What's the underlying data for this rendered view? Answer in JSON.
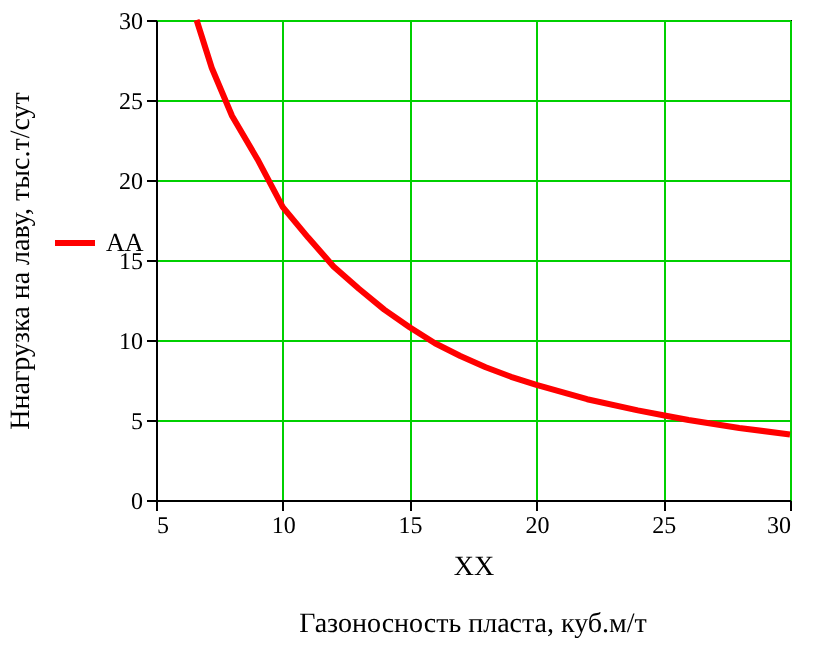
{
  "chart_data": {
    "type": "line",
    "xlabel": "XX",
    "ylabel": "Ннагрузка на лаву, тыс.т/сут",
    "annotations": [
      "Газоносность пласта, куб.м/т"
    ],
    "x": [
      6.6,
      7.2,
      8,
      9,
      10,
      11,
      12,
      13,
      14,
      15,
      16,
      17,
      18,
      19,
      20,
      22,
      24,
      25,
      26,
      28,
      30
    ],
    "series": [
      {
        "name": "AA",
        "color": "#ff0000",
        "values": [
          30,
          27,
          24,
          21.3,
          18.3,
          16.4,
          14.6,
          13.2,
          11.9,
          10.8,
          9.8,
          9,
          8.3,
          7.7,
          7.2,
          6.3,
          5.6,
          5.3,
          5,
          4.5,
          4.1
        ]
      }
    ],
    "xlim": [
      5,
      30
    ],
    "xticks": [
      5,
      10,
      15,
      20,
      25,
      30
    ],
    "ylim": [
      0,
      30
    ],
    "yticks": [
      0,
      5,
      10,
      15,
      20,
      25,
      30
    ],
    "grid": true,
    "legend": "left",
    "line_style": "solid",
    "marker": "none"
  }
}
